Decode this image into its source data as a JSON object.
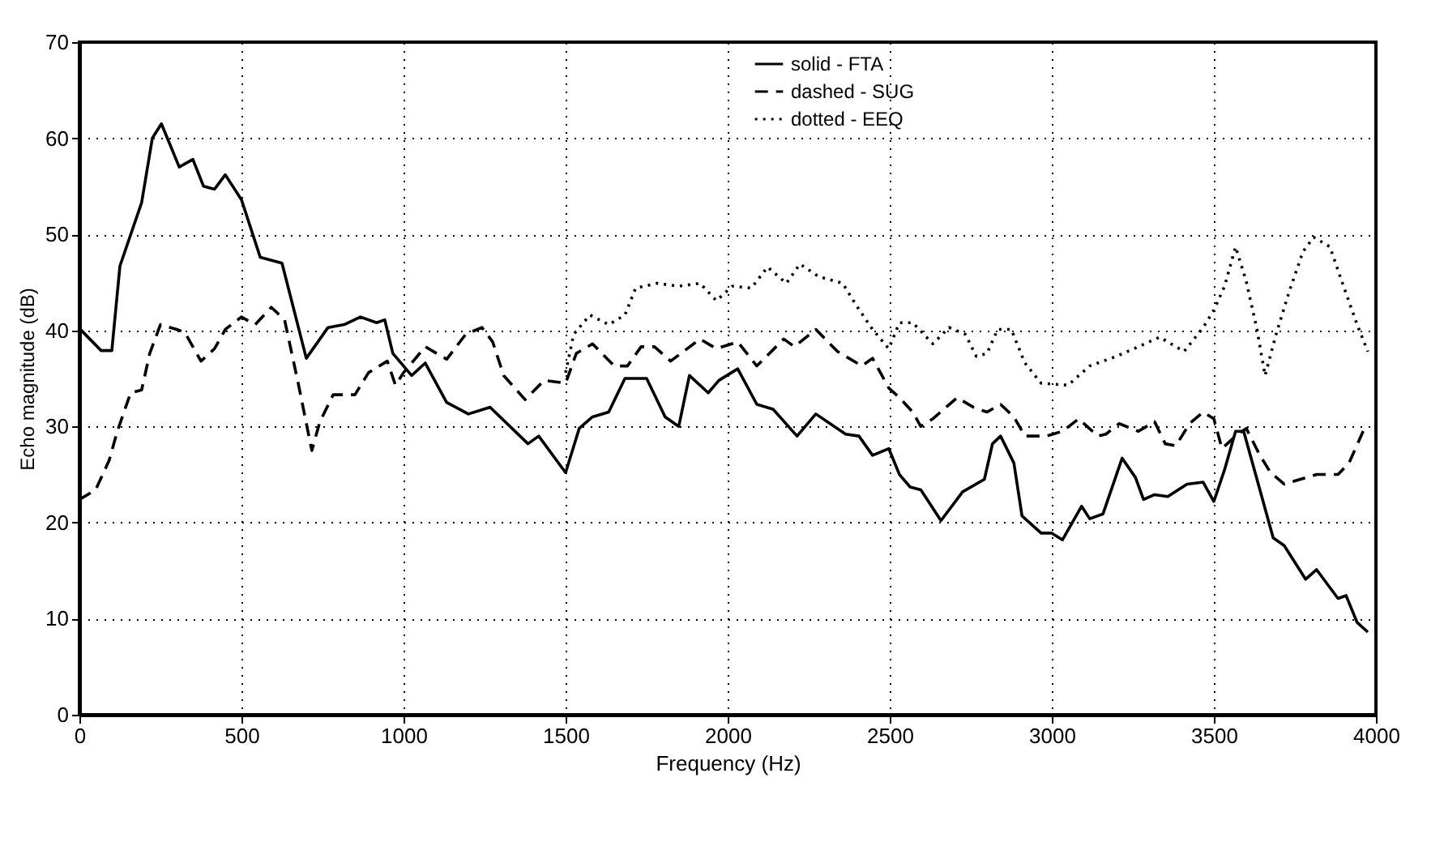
{
  "chart_data": {
    "type": "line",
    "xlabel": "Frequency (Hz)",
    "ylabel": "Echo magnitude (dB)",
    "xlim": [
      0,
      4000
    ],
    "xticks": [
      0,
      500,
      1000,
      1500,
      2000,
      2500,
      3000,
      3500,
      4000
    ],
    "ylim": [
      0,
      70
    ],
    "yticks": [
      0,
      10,
      20,
      30,
      40,
      50,
      60,
      70
    ],
    "grid": true,
    "legend": "top",
    "marker": "none",
    "series": [
      {
        "name": "solid - FTA",
        "color": "#000000",
        "line_style": "solid",
        "x": [
          0,
          67,
          100,
          125,
          192,
          225,
          253,
          308,
          350,
          383,
          417,
          450,
          500,
          558,
          625,
          700,
          767,
          817,
          867,
          917,
          942,
          967,
          1025,
          1067,
          1133,
          1200,
          1267,
          1384,
          1417,
          1500,
          1542,
          1583,
          1633,
          1683,
          1750,
          1807,
          1849,
          1882,
          1940,
          1973,
          2031,
          2090,
          2140,
          2214,
          2272,
          2364,
          2405,
          2447,
          2497,
          2530,
          2563,
          2596,
          2658,
          2725,
          2792,
          2817,
          2842,
          2883,
          2908,
          2967,
          3000,
          3033,
          3092,
          3117,
          3158,
          3217,
          3258,
          3283,
          3317,
          3358,
          3417,
          3467,
          3500,
          3533,
          3567,
          3592,
          3642,
          3683,
          3717,
          3783,
          3817,
          3883,
          3908,
          3942,
          3975
        ],
        "values": [
          40.2,
          37.9,
          37.9,
          46.7,
          53.3,
          60,
          61.5,
          57,
          57.8,
          55,
          54.7,
          56.2,
          53.6,
          47.6,
          47,
          37.1,
          40.3,
          40.6,
          41.4,
          40.8,
          41.1,
          37.6,
          35.3,
          36.6,
          32.5,
          31.3,
          32,
          28.2,
          29,
          25.2,
          29.8,
          31,
          31.5,
          35,
          35,
          31,
          30,
          35.3,
          33.5,
          34.8,
          36,
          32.3,
          31.8,
          29,
          31.3,
          29.2,
          29,
          27,
          27.7,
          25,
          23.7,
          23.4,
          20.2,
          23.2,
          24.5,
          28.2,
          29,
          26.2,
          20.7,
          18.9,
          18.9,
          18.2,
          21.7,
          20.4,
          20.9,
          26.7,
          24.7,
          22.4,
          22.9,
          22.7,
          24,
          24.2,
          22.2,
          25.5,
          29.5,
          29.5,
          23.4,
          18.4,
          17.6,
          14.1,
          15.1,
          12.1,
          12.4,
          9.6,
          8.6
        ]
      },
      {
        "name": "dashed - SUG",
        "color": "#000000",
        "line_style": "dashed",
        "x": [
          0,
          50,
          92,
          117,
          158,
          192,
          217,
          250,
          300,
          325,
          375,
          417,
          450,
          500,
          542,
          592,
          633,
          675,
          717,
          742,
          783,
          850,
          892,
          950,
          975,
          1000,
          1067,
          1133,
          1192,
          1242,
          1275,
          1309,
          1375,
          1434,
          1500,
          1533,
          1583,
          1650,
          1691,
          1733,
          1774,
          1824,
          1915,
          1965,
          2031,
          2090,
          2173,
          2206,
          2272,
          2339,
          2414,
          2447,
          2497,
          2530,
          2571,
          2596,
          2633,
          2708,
          2758,
          2800,
          2842,
          2883,
          2917,
          2983,
          3033,
          3083,
          3142,
          3167,
          3208,
          3267,
          3317,
          3350,
          3383,
          3425,
          3467,
          3500,
          3525,
          3567,
          3600,
          3642,
          3675,
          3717,
          3817,
          3883,
          3917,
          3967
        ],
        "values": [
          22.4,
          23.4,
          26.5,
          29.5,
          33.5,
          33.8,
          37.6,
          40.6,
          40.1,
          39.8,
          36.8,
          38.1,
          40.1,
          41.4,
          40.6,
          42.4,
          41.1,
          34.5,
          27.5,
          30.5,
          33.3,
          33.3,
          35.6,
          36.8,
          34.3,
          35.6,
          38.3,
          37,
          39.6,
          40.3,
          38.8,
          35.3,
          32.8,
          34.8,
          34.5,
          37.6,
          38.6,
          36.3,
          36.3,
          38.3,
          38.3,
          36.8,
          39.1,
          38.1,
          38.8,
          36.3,
          39.1,
          38.3,
          40.1,
          37.8,
          36.3,
          37.1,
          34,
          33,
          31.5,
          30,
          30.8,
          33,
          32,
          31.5,
          32.3,
          31,
          29,
          29,
          29.5,
          30.8,
          29,
          29.2,
          30.3,
          29.5,
          30.5,
          28.2,
          28,
          30.3,
          31.5,
          30.8,
          27.7,
          29,
          29.8,
          27,
          25.2,
          24,
          25,
          25,
          26.2,
          30
        ]
      },
      {
        "name": "dotted - EEQ",
        "color": "#000000",
        "line_style": "dotted",
        "x": [
          1500,
          1525,
          1575,
          1633,
          1683,
          1716,
          1782,
          1849,
          1915,
          1965,
          2015,
          2073,
          2123,
          2181,
          2223,
          2281,
          2355,
          2397,
          2447,
          2497,
          2530,
          2571,
          2633,
          2683,
          2733,
          2767,
          2800,
          2833,
          2875,
          2917,
          2967,
          3050,
          3117,
          3200,
          3267,
          3333,
          3408,
          3467,
          3500,
          3533,
          3567,
          3600,
          3633,
          3658,
          3692,
          3733,
          3775,
          3808,
          3858,
          3900,
          3942,
          3975
        ],
        "values": [
          35.6,
          39.6,
          41.6,
          40.6,
          41.6,
          44.4,
          44.9,
          44.6,
          44.9,
          43.1,
          44.6,
          44.4,
          46.6,
          44.9,
          46.9,
          45.6,
          44.9,
          42.6,
          40.1,
          38.1,
          40.8,
          40.8,
          38.6,
          40.3,
          39.6,
          37.3,
          37.6,
          40.1,
          40.1,
          36.6,
          34.5,
          34.3,
          36.3,
          37.3,
          38.3,
          39.3,
          37.8,
          40.3,
          42.1,
          44.6,
          48.7,
          45.1,
          40.1,
          35.3,
          39.6,
          44.1,
          48.2,
          49.7,
          48.7,
          44.6,
          40.6,
          37.8
        ]
      }
    ]
  }
}
